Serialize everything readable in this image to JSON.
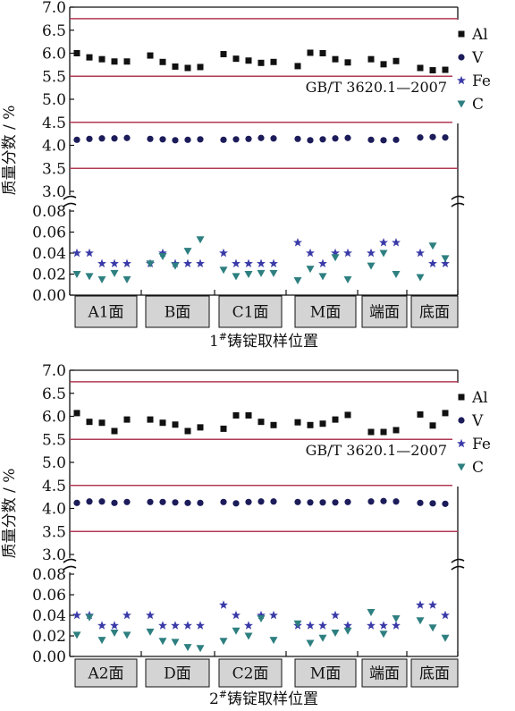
{
  "colors": {
    "Al": "#111111",
    "V": "#1c1c5a",
    "Fe": "#3a3aa8",
    "C": "#2e7f80",
    "limit": "#b03a55",
    "catbox": "#d4d4d4"
  },
  "chart_data": [
    {
      "type": "scatter",
      "title": "",
      "ylabel": "质量分数 / %",
      "xlabel": "1#铸锭取样位置",
      "xlabel_main": "1",
      "xlabel_sup": "#",
      "xlabel_rest": "铸锭取样位置",
      "annotation": "GB/T 3620.1—2007",
      "ylim_upper": [
        3.0,
        7.0
      ],
      "ylim_lower": [
        0.0,
        0.08
      ],
      "yticks_upper": [
        "3.0",
        "3.5",
        "4.0",
        "4.5",
        "5.0",
        "5.5",
        "6.0",
        "6.5",
        "7.0"
      ],
      "yticks_lower": [
        "0.00",
        "0.02",
        "0.04",
        "0.06",
        "0.08"
      ],
      "limit_lines": [
        3.5,
        4.5,
        5.5,
        6.75
      ],
      "legend_position": "top-right",
      "categories": [
        "A1面",
        "B面",
        "C1面",
        "M面",
        "端面",
        "底面"
      ],
      "series": [
        {
          "name": "Al",
          "marker": "square",
          "values": [
            [
              6.0,
              5.91,
              5.87,
              5.82,
              5.82
            ],
            [
              5.95,
              5.81,
              5.71,
              5.68,
              5.7
            ],
            [
              5.98,
              5.88,
              5.84,
              5.79,
              5.81
            ],
            [
              5.72,
              6.01,
              6.0,
              5.87,
              5.8
            ],
            [
              5.87,
              5.76,
              5.83
            ],
            [
              5.68,
              5.63,
              5.64
            ]
          ]
        },
        {
          "name": "V",
          "marker": "circle",
          "values": [
            [
              4.12,
              4.14,
              4.15,
              4.15,
              4.16
            ],
            [
              4.14,
              4.13,
              4.11,
              4.12,
              4.13
            ],
            [
              4.12,
              4.13,
              4.14,
              4.16,
              4.15
            ],
            [
              4.14,
              4.11,
              4.13,
              4.15,
              4.16
            ],
            [
              4.12,
              4.11,
              4.12
            ],
            [
              4.17,
              4.18,
              4.17
            ]
          ]
        },
        {
          "name": "Fe",
          "marker": "star",
          "values": [
            [
              0.04,
              0.04,
              0.03,
              0.03,
              0.03
            ],
            [
              0.03,
              0.04,
              0.03,
              0.03,
              0.03
            ],
            [
              0.04,
              0.03,
              0.03,
              0.03,
              0.03
            ],
            [
              0.05,
              0.04,
              0.03,
              0.04,
              0.04
            ],
            [
              0.04,
              0.05,
              0.05
            ],
            [
              0.04,
              0.03,
              0.03
            ]
          ]
        },
        {
          "name": "C",
          "marker": "triangle-down",
          "values": [
            [
              0.02,
              0.018,
              0.015,
              0.021,
              0.015
            ],
            [
              0.03,
              0.037,
              0.028,
              0.042,
              0.053
            ],
            [
              0.024,
              0.018,
              0.02,
              0.021,
              0.021
            ],
            [
              0.014,
              0.025,
              0.018,
              0.036,
              0.015
            ],
            [
              0.028,
              0.04,
              0.02
            ],
            [
              0.017,
              0.047,
              0.035
            ]
          ]
        }
      ]
    },
    {
      "type": "scatter",
      "title": "",
      "ylabel": "质量分数 / %",
      "xlabel": "2#铸锭取样位置",
      "xlabel_main": "2",
      "xlabel_sup": "#",
      "xlabel_rest": "铸锭取样位置",
      "annotation": "GB/T 3620.1—2007",
      "ylim_upper": [
        3.0,
        7.0
      ],
      "ylim_lower": [
        0.0,
        0.08
      ],
      "yticks_upper": [
        "3.0",
        "3.5",
        "4.0",
        "4.5",
        "5.0",
        "5.5",
        "6.0",
        "6.5",
        "7.0"
      ],
      "yticks_lower": [
        "0.00",
        "0.02",
        "0.04",
        "0.06",
        "0.08"
      ],
      "limit_lines": [
        3.5,
        4.5,
        5.5,
        6.75
      ],
      "legend_position": "top-right",
      "categories": [
        "A2面",
        "D面",
        "C2面",
        "M面",
        "端面",
        "底面"
      ],
      "series": [
        {
          "name": "Al",
          "marker": "square",
          "values": [
            [
              6.07,
              5.88,
              5.86,
              5.68,
              5.93
            ],
            [
              5.93,
              5.86,
              5.82,
              5.68,
              5.76
            ],
            [
              5.73,
              6.02,
              6.02,
              5.88,
              5.81
            ],
            [
              5.87,
              5.81,
              5.84,
              5.93,
              6.03
            ],
            [
              5.66,
              5.66,
              5.7
            ],
            [
              6.04,
              5.8,
              6.07
            ]
          ]
        },
        {
          "name": "V",
          "marker": "circle",
          "values": [
            [
              4.12,
              4.15,
              4.15,
              4.12,
              4.14
            ],
            [
              4.14,
              4.14,
              4.13,
              4.12,
              4.12
            ],
            [
              4.14,
              4.11,
              4.14,
              4.15,
              4.15
            ],
            [
              4.14,
              4.13,
              4.13,
              4.13,
              4.14
            ],
            [
              4.15,
              4.16,
              4.15
            ],
            [
              4.12,
              4.11,
              4.1
            ]
          ]
        },
        {
          "name": "Fe",
          "marker": "star",
          "values": [
            [
              0.04,
              0.04,
              0.03,
              0.03,
              0.04
            ],
            [
              0.04,
              0.03,
              0.03,
              0.03,
              0.03
            ],
            [
              0.05,
              0.04,
              0.03,
              0.04,
              0.04
            ],
            [
              0.03,
              0.03,
              0.03,
              0.04,
              0.03
            ],
            [
              0.03,
              0.03,
              0.03
            ],
            [
              0.05,
              0.05,
              0.04
            ]
          ]
        },
        {
          "name": "C",
          "marker": "triangle-down",
          "values": [
            [
              0.021,
              0.038,
              0.016,
              0.023,
              0.021
            ],
            [
              0.024,
              0.015,
              0.014,
              0.009,
              0.008
            ],
            [
              0.015,
              0.025,
              0.02,
              0.037,
              0.016
            ],
            [
              0.032,
              0.013,
              0.018,
              0.023,
              0.025
            ],
            [
              0.043,
              0.022,
              0.037
            ],
            [
              0.035,
              0.028,
              0.018
            ]
          ]
        }
      ]
    }
  ]
}
